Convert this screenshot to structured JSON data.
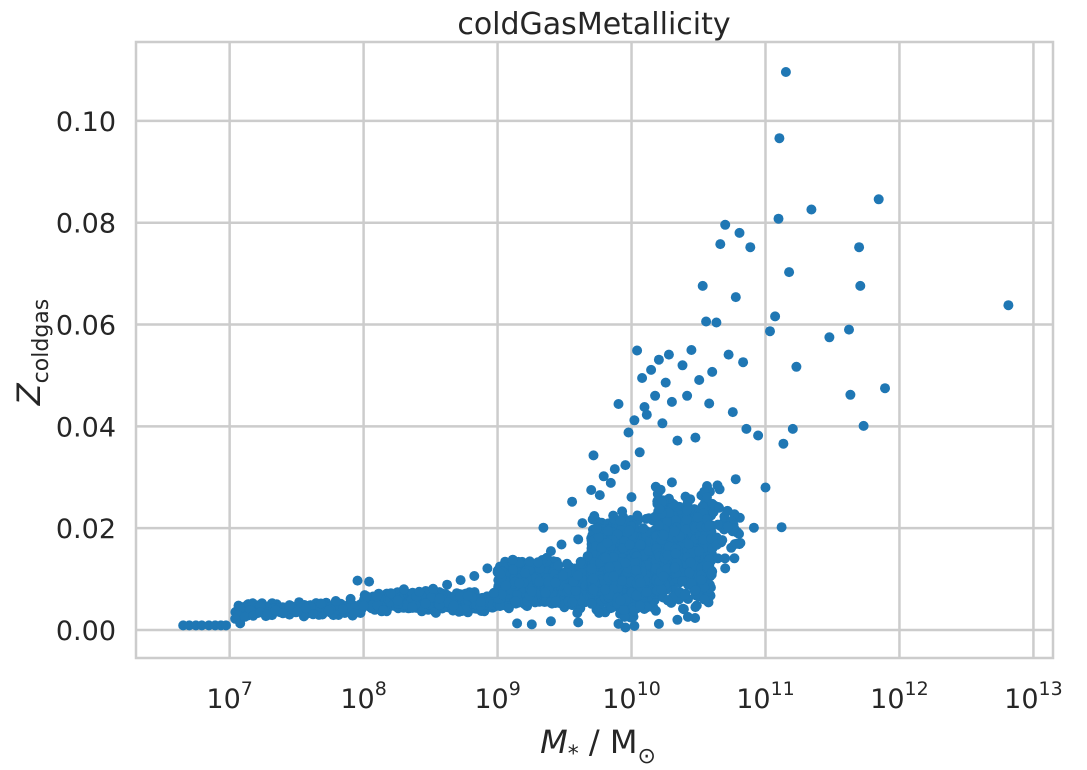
{
  "chart_data": {
    "type": "scatter",
    "title": "coldGasMetallicity",
    "xlabel": {
      "main": "M",
      "sub": "*",
      "rest": " / M",
      "sub2": "⊙"
    },
    "ylabel": {
      "main": "Z",
      "sub": "coldgas"
    },
    "x_scale": "log",
    "xlim": [
      2000000.0,
      14000000000000.0
    ],
    "ylim": [
      -0.0055,
      0.1155
    ],
    "grid": true,
    "color": "#1f77b4",
    "x_ticks": [
      {
        "base": "10",
        "exp": "7",
        "value": 10000000.0
      },
      {
        "base": "10",
        "exp": "8",
        "value": 100000000.0
      },
      {
        "base": "10",
        "exp": "9",
        "value": 1000000000.0
      },
      {
        "base": "10",
        "exp": "10",
        "value": 10000000000.0
      },
      {
        "base": "10",
        "exp": "11",
        "value": 100000000000.0
      },
      {
        "base": "10",
        "exp": "12",
        "value": 1000000000000.0
      },
      {
        "base": "10",
        "exp": "13",
        "value": 10000000000000.0
      }
    ],
    "y_ticks": [
      {
        "label": "0.00",
        "value": 0.0
      },
      {
        "label": "0.02",
        "value": 0.02
      },
      {
        "label": "0.04",
        "value": 0.04
      },
      {
        "label": "0.06",
        "value": 0.06
      },
      {
        "label": "0.08",
        "value": 0.08
      },
      {
        "label": "0.10",
        "value": 0.1
      }
    ],
    "points": [
      [
        4500000.0,
        0.0009
      ],
      [
        5000000.0,
        0.0009
      ],
      [
        5600000.0,
        0.0009
      ],
      [
        6200000.0,
        0.0009
      ],
      [
        7000000.0,
        0.0009
      ],
      [
        7800000.0,
        0.0009
      ],
      [
        8600000.0,
        0.0009
      ],
      [
        9400000.0,
        0.0009
      ],
      [
        11000000.0,
        0.0022
      ],
      [
        12000000.0,
        0.0013
      ],
      [
        13000000.0,
        0.0026
      ],
      [
        15000000.0,
        0.0028
      ],
      [
        17000000.0,
        0.0035
      ],
      [
        19000000.0,
        0.003
      ],
      [
        22000000.0,
        0.0039
      ],
      [
        25000000.0,
        0.0033
      ],
      [
        28000000.0,
        0.0049
      ],
      [
        32000000.0,
        0.0036
      ],
      [
        37000000.0,
        0.0043
      ],
      [
        42000000.0,
        0.0031
      ],
      [
        48000000.0,
        0.0052
      ],
      [
        55000000.0,
        0.0039
      ],
      [
        62000000.0,
        0.0057
      ],
      [
        70000000.0,
        0.0041
      ],
      [
        80000000.0,
        0.0061
      ],
      [
        90000000.0,
        0.0097
      ],
      [
        100000000.0,
        0.0048
      ],
      [
        110000000.0,
        0.0095
      ],
      [
        125000000.0,
        0.0066
      ],
      [
        140000000.0,
        0.0039
      ],
      [
        160000000.0,
        0.0072
      ],
      [
        180000000.0,
        0.0058
      ],
      [
        200000000.0,
        0.008
      ],
      [
        230000000.0,
        0.0045
      ],
      [
        260000000.0,
        0.0075
      ],
      [
        290000000.0,
        0.0052
      ],
      [
        330000000.0,
        0.0081
      ],
      [
        370000000.0,
        0.0062
      ],
      [
        420000000.0,
        0.0089
      ],
      [
        470000000.0,
        0.0048
      ],
      [
        530000000.0,
        0.0098
      ],
      [
        600000000.0,
        0.0067
      ],
      [
        670000000.0,
        0.0106
      ],
      [
        750000000.0,
        0.0055
      ],
      [
        840000000.0,
        0.0121
      ],
      [
        940000000.0,
        0.0073
      ],
      [
        1050000000.0,
        0.011
      ],
      [
        1150000000.0,
        0.0087
      ],
      [
        1300000000.0,
        0.0138
      ],
      [
        1450000000.0,
        0.0092
      ],
      [
        1600000000.0,
        0.0112
      ],
      [
        1800000000.0,
        0.0076
      ],
      [
        2000000000.0,
        0.0133
      ],
      [
        2200000000.0,
        0.0201
      ],
      [
        2500000000.0,
        0.0155
      ],
      [
        2700000000.0,
        0.0093
      ],
      [
        3000000000.0,
        0.0168
      ],
      [
        3300000000.0,
        0.013
      ],
      [
        3600000000.0,
        0.0252
      ],
      [
        4000000000.0,
        0.0178
      ],
      [
        4300000000.0,
        0.021
      ],
      [
        4700000000.0,
        0.0145
      ],
      [
        5000000000.0,
        0.0275
      ],
      [
        5200000000.0,
        0.0343
      ],
      [
        5500000000.0,
        0.0199
      ],
      [
        5800000000.0,
        0.0265
      ],
      [
        6200000000.0,
        0.0302
      ],
      [
        6600000000.0,
        0.0171
      ],
      [
        7000000000.0,
        0.0289
      ],
      [
        7500000000.0,
        0.0316
      ],
      [
        8000000000.0,
        0.0444
      ],
      [
        8500000000.0,
        0.0233
      ],
      [
        9000000000.0,
        0.0324
      ],
      [
        9500000000.0,
        0.0388
      ],
      [
        10000000000.0,
        0.0261
      ],
      [
        10500000000.0,
        0.0412
      ],
      [
        11000000000.0,
        0.0549
      ],
      [
        11500000000.0,
        0.0349
      ],
      [
        12000000000.0,
        0.0495
      ],
      [
        12500000000.0,
        0.0438
      ],
      [
        13000000000.0,
        0.0423
      ],
      [
        14000000000.0,
        0.0511
      ],
      [
        15000000000.0,
        0.046
      ],
      [
        16000000000.0,
        0.0531
      ],
      [
        17000000000.0,
        0.0406
      ],
      [
        18000000000.0,
        0.0486
      ],
      [
        19000000000.0,
        0.0541
      ],
      [
        20000000000.0,
        0.0448
      ],
      [
        22000000000.0,
        0.0372
      ],
      [
        24000000000.0,
        0.052
      ],
      [
        26000000000.0,
        0.046
      ],
      [
        28000000000.0,
        0.055
      ],
      [
        30000000000.0,
        0.0378
      ],
      [
        32000000000.0,
        0.0491
      ],
      [
        34000000000.0,
        0.0676
      ],
      [
        36000000000.0,
        0.0606
      ],
      [
        38000000000.0,
        0.0445
      ],
      [
        40000000000.0,
        0.0507
      ],
      [
        43000000000.0,
        0.0604
      ],
      [
        46000000000.0,
        0.0758
      ],
      [
        50000000000.0,
        0.0796
      ],
      [
        53000000000.0,
        0.0541
      ],
      [
        57000000000.0,
        0.0428
      ],
      [
        60000000000.0,
        0.0654
      ],
      [
        64000000000.0,
        0.078
      ],
      [
        68000000000.0,
        0.0526
      ],
      [
        72000000000.0,
        0.0395
      ],
      [
        77000000000.0,
        0.0752
      ],
      [
        82000000000.0,
        0.0201
      ],
      [
        88000000000.0,
        0.0382
      ],
      [
        100000000000.0,
        0.028
      ],
      [
        108000000000.0,
        0.0587
      ],
      [
        118000000000.0,
        0.0616
      ],
      [
        125000000000.0,
        0.0808
      ],
      [
        127000000000.0,
        0.0966
      ],
      [
        132000000000.0,
        0.0202
      ],
      [
        136000000000.0,
        0.0366
      ],
      [
        142000000000.0,
        0.1096
      ],
      [
        150000000000.0,
        0.0703
      ],
      [
        160000000000.0,
        0.0395
      ],
      [
        170000000000.0,
        0.0517
      ],
      [
        220000000000.0,
        0.0826
      ],
      [
        300000000000.0,
        0.0575
      ],
      [
        420000000000.0,
        0.059
      ],
      [
        430000000000.0,
        0.0462
      ],
      [
        500000000000.0,
        0.0752
      ],
      [
        510000000000.0,
        0.0676
      ],
      [
        540000000000.0,
        0.0401
      ],
      [
        700000000000.0,
        0.0846
      ],
      [
        780000000000.0,
        0.0475
      ],
      [
        6500000000000.0,
        0.0638
      ],
      [
        9000000000.0,
        0.0005
      ],
      [
        10500000000.0,
        0.0008
      ],
      [
        8000000000.0,
        0.0012
      ],
      [
        4000000000.0,
        0.0015
      ],
      [
        2500000000.0,
        0.0017
      ],
      [
        1800000000.0,
        0.0011
      ],
      [
        1400000000.0,
        0.0013
      ],
      [
        16000000000.0,
        0.0012
      ],
      [
        22000000000.0,
        0.002
      ],
      [
        30000000000.0,
        0.0045
      ],
      [
        35000000000.0,
        0.006
      ],
      [
        30000000000.0,
        0.0078
      ],
      [
        40000000000.0,
        0.0115
      ],
      [
        50000000000.0,
        0.0121
      ],
      [
        32000000000.0,
        0.0155
      ],
      [
        38000000000.0,
        0.0205
      ],
      [
        26000000000.0,
        0.0235
      ],
      [
        45000000000.0,
        0.024
      ],
      [
        20000000000.0,
        0.029
      ]
    ],
    "dense_regions": [
      {
        "x_range": [
          11000000.0,
          100000000.0
        ],
        "y_band": [
          0.0024,
          0.0058
        ],
        "count": 220
      },
      {
        "x_range": [
          100000000.0,
          1000000000.0
        ],
        "y_band": [
          0.003,
          0.008
        ],
        "count": 420
      },
      {
        "x_range": [
          1000000000.0,
          5000000000.0
        ],
        "y_band": [
          0.0025,
          0.015
        ],
        "count": 700
      },
      {
        "x_range": [
          5000000000.0,
          15000000000.0
        ],
        "y_band": [
          0.001,
          0.024
        ],
        "count": 1600
      },
      {
        "x_range": [
          15000000000.0,
          40000000000.0
        ],
        "y_band": [
          0.0015,
          0.03
        ],
        "count": 550
      },
      {
        "x_range": [
          40000000000.0,
          65000000000.0
        ],
        "y_band": [
          0.008,
          0.032
        ],
        "count": 40
      }
    ]
  }
}
